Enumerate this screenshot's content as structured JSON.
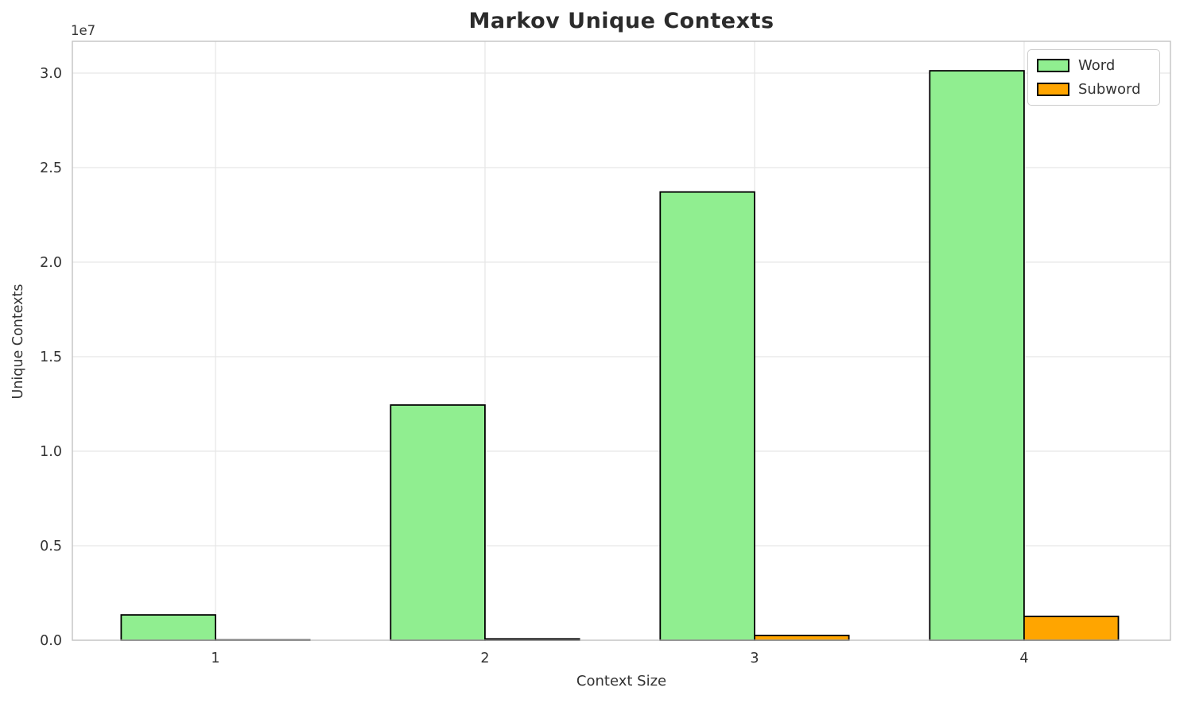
{
  "chart_data": {
    "type": "bar",
    "title": "Markov Unique Contexts",
    "xlabel": "Context Size",
    "ylabel": "Unique Contexts",
    "y_offset_text": "1e7",
    "categories": [
      "1",
      "2",
      "3",
      "4"
    ],
    "series": [
      {
        "name": "Word",
        "color": "#90ee90",
        "values": [
          1340000,
          12440000,
          23710000,
          30120000
        ]
      },
      {
        "name": "Subword",
        "color": "#ffa500",
        "values": [
          15000,
          70000,
          250000,
          1260000
        ]
      }
    ],
    "bar_width": 0.35,
    "bar_edge_color": "#000000",
    "xlim": [
      0.469,
      4.543
    ],
    "ylim": [
      0,
      31680000
    ],
    "yticks": [
      0,
      5000000,
      10000000,
      15000000,
      20000000,
      25000000,
      30000000
    ],
    "ytick_labels": [
      "0.0",
      "0.5",
      "1.0",
      "1.5",
      "2.0",
      "2.5",
      "3.0"
    ],
    "grid": true,
    "legend": {
      "position": "upper right",
      "entries": [
        "Word",
        "Subword"
      ]
    },
    "colors": {
      "grid": "#e7e7e7",
      "spine": "#c3c3c3",
      "tick_label": "#333333",
      "title": "#2b2b2b"
    }
  }
}
